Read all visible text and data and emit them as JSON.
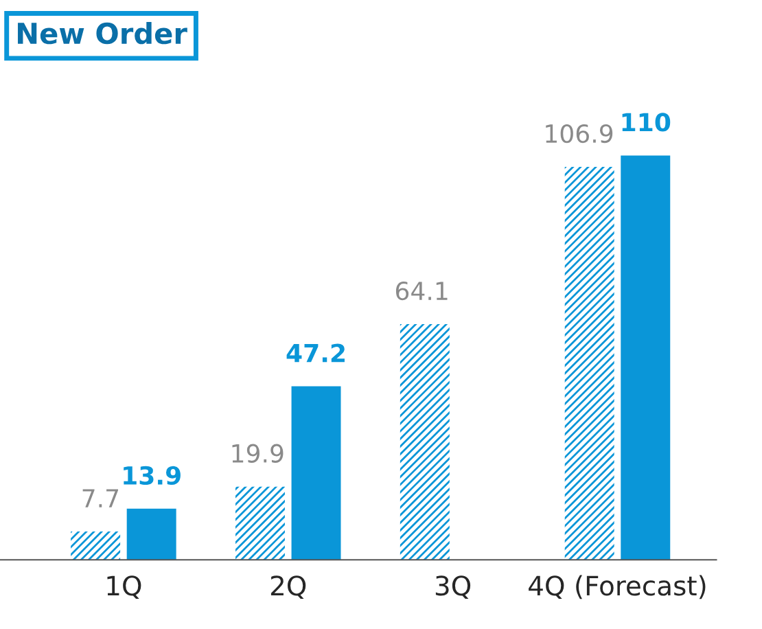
{
  "chart_data": {
    "type": "bar",
    "title": "New Order",
    "categories": [
      "1Q",
      "2Q",
      "3Q",
      "4Q (Forecast)"
    ],
    "series": [
      {
        "color": "#0a96d8",
        "values": [
          7.7,
          19.9,
          64.1,
          106.9
        ]
      },
      {
        "color": "#0a96d8",
        "values": [
          13.9,
          47.2,
          null,
          110
        ]
      }
    ],
    "data_labels": true,
    "grid": false,
    "legend": false
  }
}
